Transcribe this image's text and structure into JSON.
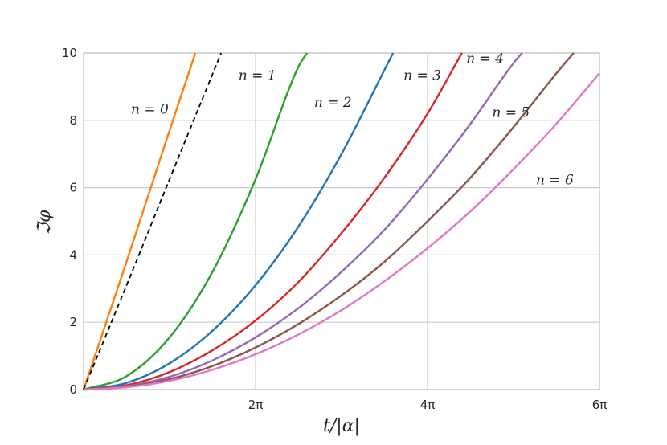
{
  "chart_data": {
    "type": "line",
    "xlabel": "t/|α|",
    "ylabel": "ℑφ",
    "xlim": [
      0,
      6
    ],
    "ylim": [
      0,
      10
    ],
    "x_unit": "π",
    "xticks": [
      2,
      4,
      6
    ],
    "xtick_labels": [
      "2π",
      "4π",
      "6π"
    ],
    "yticks": [
      0,
      2,
      4,
      6,
      8,
      10
    ],
    "ytick_labels": [
      "0",
      "2",
      "4",
      "6",
      "8",
      "10"
    ],
    "grid": true,
    "legend": "none",
    "x_sample": [
      0,
      0.5,
      1,
      1.5,
      2,
      2.5,
      3,
      3.5,
      4,
      4.5,
      5,
      5.5,
      6
    ],
    "series": [
      {
        "name": "n = 0",
        "color": "#ff7f0e",
        "dash": "solid",
        "x": [
          0,
          0.5,
          1,
          1.3
        ],
        "y": [
          0,
          3.8,
          7.7,
          10
        ]
      },
      {
        "name": "",
        "color": "#000000",
        "dash": "dashed",
        "x": [
          0,
          0.5,
          1,
          1.6
        ],
        "y": [
          0,
          3.1,
          6.25,
          10
        ]
      },
      {
        "name": "n = 1",
        "color": "#2ca02c",
        "dash": "solid",
        "x": [
          0,
          0.5,
          1,
          1.5,
          2,
          2.5,
          2.6
        ],
        "y": [
          0,
          0.4,
          1.55,
          3.5,
          6.25,
          9.6,
          10
        ]
      },
      {
        "name": "n = 2",
        "color": "#1f77b4",
        "dash": "solid",
        "x": [
          0,
          0.5,
          1,
          1.5,
          2,
          2.5,
          3,
          3.5,
          3.6
        ],
        "y": [
          0,
          0.2,
          0.78,
          1.75,
          3.1,
          4.85,
          7.0,
          9.5,
          10
        ]
      },
      {
        "name": "n = 3",
        "color": "#d62728",
        "dash": "solid",
        "x": [
          0,
          0.5,
          1,
          1.5,
          2,
          2.5,
          3,
          3.5,
          4,
          4.4
        ],
        "y": [
          0,
          0.13,
          0.52,
          1.17,
          2.05,
          3.2,
          4.65,
          6.3,
          8.2,
          10
        ]
      },
      {
        "name": "n = 4",
        "color": "#9467bd",
        "dash": "solid",
        "x": [
          0,
          0.5,
          1,
          1.5,
          2,
          2.5,
          3,
          3.5,
          4,
          4.5,
          5,
          5.1
        ],
        "y": [
          0,
          0.1,
          0.38,
          0.87,
          1.55,
          2.42,
          3.5,
          4.75,
          6.25,
          7.9,
          9.7,
          10
        ]
      },
      {
        "name": "n = 5",
        "color": "#8c564b",
        "dash": "solid",
        "x": [
          0,
          0.5,
          1,
          1.5,
          2,
          2.5,
          3,
          3.5,
          4,
          4.5,
          5,
          5.5,
          5.7
        ],
        "y": [
          0,
          0.08,
          0.31,
          0.7,
          1.25,
          1.95,
          2.8,
          3.8,
          5.0,
          6.3,
          7.8,
          9.4,
          10
        ]
      },
      {
        "name": "n = 6",
        "color": "#e377c2",
        "dash": "solid",
        "x": [
          0,
          0.5,
          1,
          1.5,
          2,
          2.5,
          3,
          3.5,
          4,
          4.5,
          5,
          5.5,
          6
        ],
        "y": [
          0,
          0.07,
          0.26,
          0.59,
          1.05,
          1.64,
          2.36,
          3.22,
          4.2,
          5.3,
          6.55,
          7.9,
          9.4
        ]
      }
    ],
    "series_labels": [
      {
        "text": "n = 0",
        "x": 0.77,
        "y": 8.2
      },
      {
        "text": "n = 1",
        "x": 2.02,
        "y": 9.2
      },
      {
        "text": "n = 2",
        "x": 2.9,
        "y": 8.4
      },
      {
        "text": "n = 3",
        "x": 3.94,
        "y": 9.2
      },
      {
        "text": "n = 4",
        "x": 4.67,
        "y": 9.7
      },
      {
        "text": "n = 5",
        "x": 4.97,
        "y": 8.1
      },
      {
        "text": "n = 6",
        "x": 5.48,
        "y": 6.1
      }
    ]
  }
}
